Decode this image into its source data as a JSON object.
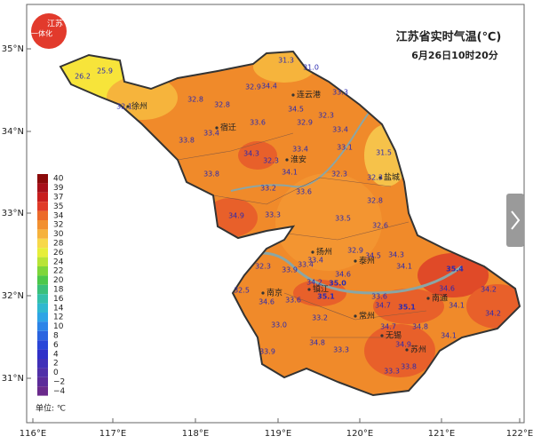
{
  "header": {
    "title": "江苏省实时气温(℃)",
    "subtitle": "6月26日10时20分",
    "logo_top": "江苏",
    "logo_side": "一体化"
  },
  "axes": {
    "x_labels": [
      "116°E",
      "117°E",
      "118°E",
      "119°E",
      "120°E",
      "121°E",
      "122°E"
    ],
    "y_labels": [
      "35°N",
      "34°N",
      "33°N",
      "32°N",
      "31°N"
    ]
  },
  "legend": {
    "labels": [
      "40",
      "39",
      "37",
      "35",
      "34",
      "32",
      "30",
      "28",
      "26",
      "24",
      "22",
      "20",
      "18",
      "16",
      "14",
      "12",
      "10",
      "8",
      "6",
      "4",
      "2",
      "0",
      "−2",
      "−4"
    ],
    "unit": "单位: ℃"
  },
  "cities": [
    "徐州",
    "宿迁",
    "连云港",
    "淮安",
    "盐城",
    "扬州",
    "泰州",
    "南京",
    "镇江",
    "常州",
    "无锡",
    "苏州",
    "南通"
  ],
  "temperatures": [
    "26.2",
    "25.9",
    "31.3",
    "31.0",
    "32.8",
    "32.9",
    "34.4",
    "33.3",
    "32.1",
    "32.8",
    "34.5",
    "33.4",
    "33.6",
    "32.9",
    "32.3",
    "33.8",
    "33.4",
    "33.4",
    "33.1",
    "31.5",
    "34.3",
    "32.3",
    "34.1",
    "33.8",
    "32.3",
    "32.3",
    "33.2",
    "33.6",
    "32.8",
    "34.9",
    "33.3",
    "33.5",
    "32.6",
    "32.9",
    "34.5",
    "33.4",
    "34.3",
    "32.3",
    "33.9",
    "33.4",
    "34.6",
    "34.1",
    "35.4",
    "32.5",
    "34.2",
    "35.0",
    "34.6",
    "34.2",
    "34.6",
    "33.6",
    "35.1",
    "33.6",
    "34.7",
    "35.1",
    "34.1",
    "34.2",
    "33.0",
    "33.2",
    "34.8",
    "34.7",
    "34.1",
    "33.9",
    "34.8",
    "33.3",
    "34.9",
    "33.8",
    "33.3"
  ]
}
